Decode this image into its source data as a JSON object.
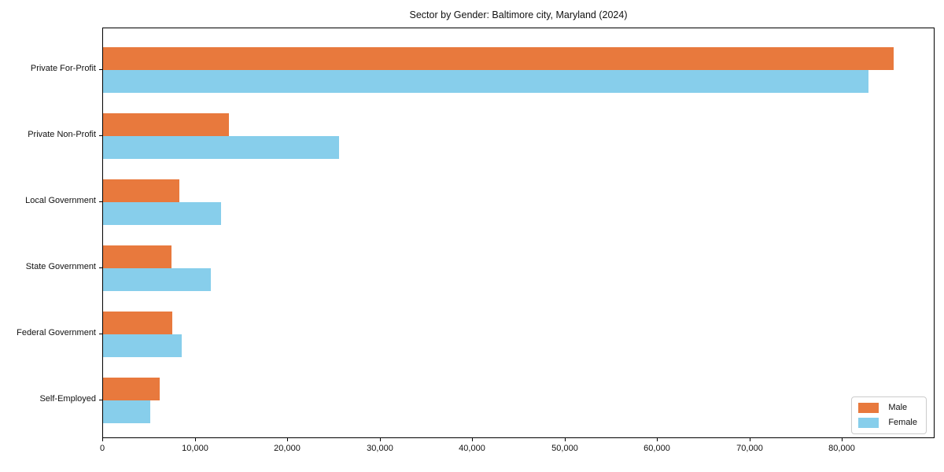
{
  "chart_data": {
    "type": "bar",
    "orientation": "horizontal",
    "title": "Sector by Gender: Baltimore city, Maryland (2024)",
    "xlabel": "",
    "ylabel": "",
    "categories": [
      "Private For-Profit",
      "Private Non-Profit",
      "Local Government",
      "State Government",
      "Federal Government",
      "Self-Employed"
    ],
    "series": [
      {
        "name": "Male",
        "color": "#E8793D",
        "values": [
          85500,
          13600,
          8250,
          7400,
          7500,
          6100
        ]
      },
      {
        "name": "Female",
        "color": "#87CEEB",
        "values": [
          82800,
          25500,
          12750,
          11650,
          8500,
          5100
        ]
      }
    ],
    "xlim": [
      0,
      90000
    ],
    "xticks": {
      "values": [
        0,
        10000,
        20000,
        30000,
        40000,
        50000,
        60000,
        70000,
        80000
      ],
      "labels": [
        "0",
        "10,000",
        "20,000",
        "30,000",
        "40,000",
        "50,000",
        "60,000",
        "70,000",
        "80,000"
      ]
    },
    "grid": false,
    "legend": {
      "position": "lower right"
    }
  }
}
